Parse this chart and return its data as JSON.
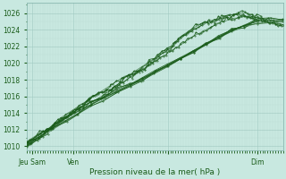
{
  "background_color": "#c8e8e0",
  "plot_bg_color": "#c8e8e0",
  "grid_color_major": "#a0c8c0",
  "grid_color_minor": "#b8d8d0",
  "line_color": "#1a5c1a",
  "ylim": [
    1009.5,
    1027.2
  ],
  "xlim": [
    0,
    100
  ],
  "ylabel_values": [
    1010,
    1012,
    1014,
    1016,
    1018,
    1020,
    1022,
    1024,
    1026
  ],
  "xtick_positions": [
    2,
    18,
    55,
    90
  ],
  "xtick_labels": [
    "Jeu Sam",
    "Ven",
    "",
    "Dim"
  ],
  "xlabel": "Pression niveau de la mer( hPa )",
  "lines": [
    {
      "x": [
        0,
        1,
        2,
        3,
        4,
        5,
        6,
        7,
        8,
        9,
        10,
        11,
        12,
        13,
        14,
        15,
        16,
        17,
        18,
        19,
        20,
        21,
        22,
        23,
        24,
        25,
        26,
        27,
        28,
        29,
        30,
        31,
        32,
        33,
        34,
        35,
        36,
        37,
        38,
        39,
        40,
        41,
        42,
        43,
        44,
        45,
        46,
        47,
        48,
        49,
        50,
        51,
        52,
        53,
        54,
        55,
        56,
        57,
        58,
        59,
        60,
        61,
        62,
        63,
        64,
        65,
        66,
        67,
        68,
        69,
        70,
        71,
        72,
        73,
        74,
        75,
        76,
        77,
        78,
        79,
        80,
        81,
        82,
        83,
        84,
        85,
        86,
        87,
        88,
        89,
        90,
        91,
        92,
        93,
        94,
        95,
        96,
        97,
        98,
        99,
        100
      ],
      "y": [
        1010.6,
        1010.8,
        1011.0,
        1011.2,
        1011.4,
        1011.6,
        1011.7,
        1011.9,
        1012.1,
        1012.3,
        1012.5,
        1012.7,
        1012.9,
        1013.1,
        1013.3,
        1013.5,
        1013.7,
        1013.9,
        1014.1,
        1014.3,
        1014.5,
        1014.6,
        1014.8,
        1015.0,
        1015.2,
        1015.3,
        1015.5,
        1015.6,
        1015.8,
        1016.0,
        1016.2,
        1016.4,
        1016.6,
        1016.8,
        1017.0,
        1017.2,
        1017.4,
        1017.6,
        1017.8,
        1018.0,
        1018.2,
        1018.4,
        1018.6,
        1018.8,
        1019.0,
        1019.2,
        1019.4,
        1019.6,
        1019.8,
        1020.0,
        1020.2,
        1020.4,
        1020.6,
        1020.8,
        1021.0,
        1021.2,
        1021.4,
        1021.6,
        1021.8,
        1022.0,
        1022.2,
        1022.4,
        1022.6,
        1022.8,
        1023.0,
        1023.2,
        1023.4,
        1023.5,
        1023.7,
        1023.9,
        1024.0,
        1024.2,
        1024.3,
        1024.5,
        1024.6,
        1024.8,
        1024.9,
        1025.0,
        1025.1,
        1025.2,
        1025.3,
        1025.4,
        1025.4,
        1025.5,
        1025.5,
        1025.6,
        1025.6,
        1025.6,
        1025.6,
        1025.5,
        1025.4,
        1025.3,
        1025.2,
        1025.1,
        1025.0,
        1024.9,
        1024.8,
        1024.7,
        1024.6,
        1024.5,
        1024.4
      ]
    },
    {
      "x": [
        0,
        1,
        2,
        3,
        4,
        5,
        6,
        7,
        8,
        9,
        10,
        11,
        12,
        13,
        14,
        15,
        16,
        17,
        18,
        19,
        20,
        21,
        22,
        23,
        24,
        25,
        26,
        27,
        28,
        29,
        30,
        31,
        32,
        33,
        34,
        35,
        36,
        37,
        38,
        39,
        40,
        41,
        42,
        43,
        44,
        45,
        46,
        47,
        48,
        49,
        50,
        51,
        52,
        53,
        54,
        55,
        56,
        57,
        58,
        59,
        60,
        61,
        62,
        63,
        64,
        65,
        66,
        67,
        68,
        69,
        70,
        71,
        72,
        73,
        74,
        75,
        76,
        77,
        78,
        79,
        80,
        81,
        82,
        83,
        84,
        85,
        86,
        87,
        88,
        89,
        90,
        91,
        92,
        93,
        94,
        95,
        96,
        97,
        98,
        99,
        100
      ],
      "y": [
        1010.2,
        1010.3,
        1010.4,
        1010.6,
        1010.8,
        1011.0,
        1011.2,
        1011.5,
        1011.8,
        1012.1,
        1012.4,
        1012.6,
        1012.8,
        1013.0,
        1013.2,
        1013.4,
        1013.6,
        1013.8,
        1014.0,
        1014.2,
        1014.4,
        1014.7,
        1015.0,
        1015.3,
        1015.6,
        1015.8,
        1016.0,
        1016.2,
        1016.4,
        1016.5,
        1016.6,
        1016.7,
        1016.8,
        1016.9,
        1017.1,
        1017.3,
        1017.6,
        1017.9,
        1018.2,
        1018.4,
        1018.6,
        1018.8,
        1019.0,
        1019.2,
        1019.4,
        1019.6,
        1019.8,
        1020.0,
        1020.2,
        1020.4,
        1020.6,
        1020.8,
        1021.0,
        1021.2,
        1021.4,
        1021.6,
        1021.8,
        1022.0,
        1022.3,
        1022.6,
        1022.9,
        1023.2,
        1023.4,
        1023.6,
        1023.8,
        1024.0,
        1024.2,
        1024.3,
        1024.5,
        1024.6,
        1024.8,
        1024.9,
        1025.0,
        1025.1,
        1025.2,
        1025.3,
        1025.4,
        1025.5,
        1025.6,
        1025.7,
        1025.8,
        1025.9,
        1025.9,
        1026.0,
        1026.0,
        1026.0,
        1026.0,
        1025.9,
        1025.8,
        1025.7,
        1025.6,
        1025.5,
        1025.4,
        1025.3,
        1025.2,
        1025.1,
        1025.0,
        1024.9,
        1024.8,
        1024.7,
        1024.6
      ]
    },
    {
      "x": [
        0,
        1,
        2,
        3,
        4,
        5,
        6,
        7,
        8,
        9,
        10,
        11,
        12,
        13,
        14,
        15,
        16,
        17,
        18,
        19,
        20,
        21,
        22,
        23,
        24,
        25,
        26,
        27,
        28,
        29,
        30,
        31,
        32,
        33,
        34,
        35,
        36,
        37,
        38,
        39,
        40,
        41,
        42,
        43,
        44,
        45,
        46,
        47,
        48,
        49,
        50,
        51,
        52,
        53,
        54,
        55,
        56,
        57,
        58,
        59,
        60,
        61,
        62,
        63,
        64,
        65,
        66,
        67,
        68,
        69,
        70,
        71,
        72,
        73,
        74,
        75,
        76,
        77,
        78,
        79,
        80,
        81,
        82,
        83,
        84,
        85,
        86,
        87,
        88,
        89,
        90
      ],
      "y": [
        1010.4,
        1010.6,
        1010.8,
        1011.0,
        1011.2,
        1011.4,
        1011.6,
        1011.8,
        1012.0,
        1012.3,
        1012.6,
        1012.9,
        1013.2,
        1013.4,
        1013.6,
        1013.8,
        1014.0,
        1014.2,
        1014.4,
        1014.6,
        1014.8,
        1015.0,
        1015.2,
        1015.4,
        1015.6,
        1015.8,
        1016.0,
        1016.2,
        1016.4,
        1016.6,
        1016.8,
        1017.0,
        1017.2,
        1017.4,
        1017.6,
        1017.8,
        1018.0,
        1018.2,
        1018.4,
        1018.5,
        1018.6,
        1018.7,
        1018.8,
        1018.9,
        1019.0,
        1019.2,
        1019.4,
        1019.7,
        1020.0,
        1020.3,
        1020.6,
        1020.9,
        1021.2,
        1021.4,
        1021.6,
        1021.8,
        1022.0,
        1022.2,
        1022.5,
        1022.8,
        1023.1,
        1023.4,
        1023.6,
        1023.8,
        1024.0,
        1024.2,
        1024.4,
        1024.5,
        1024.7,
        1024.8,
        1024.9,
        1025.0,
        1025.1,
        1025.2,
        1025.3,
        1025.4,
        1025.5,
        1025.6,
        1025.7,
        1025.7,
        1025.8,
        1025.8,
        1025.8,
        1025.8,
        1025.7,
        1025.6,
        1025.5,
        1025.4,
        1025.3,
        1025.2,
        1025.1
      ]
    },
    {
      "x": [
        0,
        5,
        10,
        15,
        20,
        25,
        30,
        35,
        40,
        45,
        50,
        55,
        60,
        65,
        70,
        75,
        80,
        85,
        90,
        95,
        100
      ],
      "y": [
        1010.1,
        1011.2,
        1012.3,
        1013.4,
        1014.5,
        1015.3,
        1016.0,
        1016.7,
        1017.4,
        1018.2,
        1019.0,
        1019.8,
        1020.6,
        1021.4,
        1022.2,
        1023.0,
        1023.8,
        1024.3,
        1024.8,
        1025.0,
        1025.0
      ]
    },
    {
      "x": [
        0,
        5,
        10,
        15,
        20,
        25,
        30,
        35,
        40,
        45,
        50,
        55,
        60,
        65,
        70,
        75,
        80,
        85,
        90,
        95,
        100
      ],
      "y": [
        1010.0,
        1011.0,
        1012.0,
        1013.0,
        1014.0,
        1015.0,
        1015.8,
        1016.5,
        1017.3,
        1018.1,
        1018.9,
        1019.7,
        1020.6,
        1021.5,
        1022.4,
        1023.2,
        1024.0,
        1024.5,
        1025.0,
        1025.2,
        1025.1
      ]
    },
    {
      "x": [
        0,
        5,
        10,
        15,
        20,
        25,
        30,
        35,
        40,
        45,
        50,
        55,
        60,
        65,
        70,
        75,
        80,
        85,
        90,
        95,
        100
      ],
      "y": [
        1010.3,
        1011.2,
        1012.1,
        1013.0,
        1013.9,
        1014.8,
        1015.6,
        1016.4,
        1017.2,
        1018.0,
        1018.9,
        1019.8,
        1020.7,
        1021.5,
        1022.3,
        1023.1,
        1023.9,
        1024.5,
        1025.1,
        1025.4,
        1025.2
      ]
    },
    {
      "x": [
        0,
        5,
        10,
        15,
        20,
        25,
        30,
        35,
        40,
        45,
        50,
        55,
        60,
        65,
        70,
        75,
        80,
        85,
        90
      ],
      "y": [
        1010.5,
        1011.5,
        1012.4,
        1013.3,
        1014.2,
        1015.0,
        1015.8,
        1016.6,
        1017.4,
        1018.1,
        1018.9,
        1019.7,
        1020.5,
        1021.4,
        1022.3,
        1023.1,
        1023.9,
        1024.6,
        1025.2
      ]
    }
  ]
}
